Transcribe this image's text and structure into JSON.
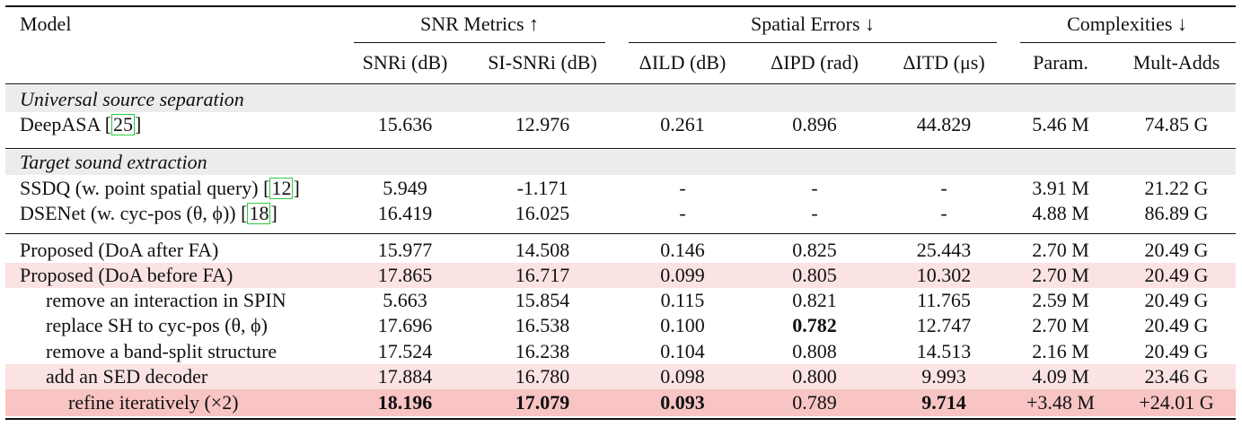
{
  "header": {
    "model": "Model",
    "groups": [
      "SNR Metrics ↑",
      "Spatial Errors ↓",
      "Complexities ↓"
    ],
    "columns": [
      "SNRi (dB)",
      "SI-SNRi (dB)",
      "ΔILD (dB)",
      "ΔIPD (rad)",
      "ΔITD (μs)",
      "Param.",
      "Mult-Adds"
    ]
  },
  "sections": {
    "universal": "Universal source separation",
    "target": "Target sound extraction"
  },
  "rows": [
    {
      "name": "DeepASA [",
      "cite": "25",
      "after": "]",
      "cells": [
        "15.636",
        "12.976",
        "0.261",
        "0.896",
        "44.829",
        "5.46 M",
        "74.85 G"
      ]
    },
    {
      "name": "SSDQ (w. point spatial query) [",
      "cite": "12",
      "after": "]",
      "cells": [
        "5.949",
        "-1.171",
        "-",
        "-",
        "-",
        "3.91 M",
        "21.22 G"
      ]
    },
    {
      "name": "DSENet (w. cyc-pos (θ, ϕ)) [",
      "cite": "18",
      "after": "]",
      "cells": [
        "16.419",
        "16.025",
        "-",
        "-",
        "-",
        "4.88 M",
        "86.89 G"
      ]
    },
    {
      "name": "Proposed (DoA after FA)",
      "cells": [
        "15.977",
        "14.508",
        "0.146",
        "0.825",
        "25.443",
        "2.70 M",
        "20.49 G"
      ]
    },
    {
      "name": "Proposed (DoA before FA)",
      "cells": [
        "17.865",
        "16.717",
        "0.099",
        "0.805",
        "10.302",
        "2.70 M",
        "20.49 G"
      ]
    },
    {
      "name": "remove an interaction in SPIN",
      "cells": [
        "5.663",
        "15.854",
        "0.115",
        "0.821",
        "11.765",
        "2.59 M",
        "20.49 G"
      ]
    },
    {
      "name": "replace SH to cyc-pos (θ, ϕ)",
      "cells": [
        "17.696",
        "16.538",
        "0.100",
        "0.782",
        "12.747",
        "2.70 M",
        "20.49 G"
      ]
    },
    {
      "name": "remove a band-split structure",
      "cells": [
        "17.524",
        "16.238",
        "0.104",
        "0.808",
        "14.513",
        "2.16 M",
        "20.49 G"
      ]
    },
    {
      "name": "add an SED decoder",
      "cells": [
        "17.884",
        "16.780",
        "0.098",
        "0.800",
        "9.993",
        "4.09 M",
        "23.46 G"
      ]
    },
    {
      "name": "refine iteratively (×2)",
      "cells": [
        "18.196",
        "17.079",
        "0.093",
        "0.789",
        "9.714",
        "+3.48 M",
        "+24.01 G"
      ]
    }
  ],
  "colors": {
    "section_band": "#ececec",
    "highlight_light": "#fbe3e3",
    "highlight_strong": "#f8c4c4",
    "citation_box": "#2ecc40"
  }
}
